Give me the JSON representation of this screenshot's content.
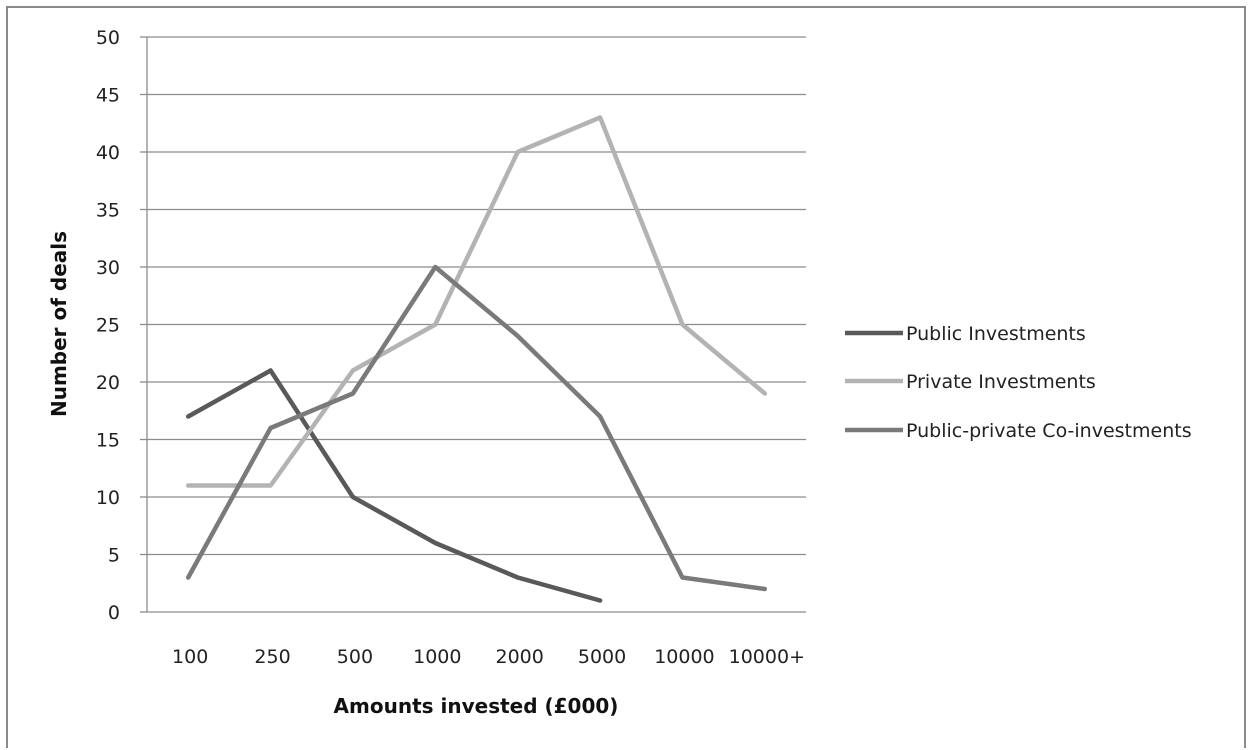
{
  "chart_data": {
    "type": "line",
    "title": "",
    "xlabel": "Amounts invested (£000)",
    "ylabel": "Number of deals",
    "categories": [
      "100",
      "250",
      "500",
      "1000",
      "2000",
      "5000",
      "10000",
      "10000+"
    ],
    "ylim": [
      0,
      50
    ],
    "yticks": [
      0,
      5,
      10,
      15,
      20,
      25,
      30,
      35,
      40,
      45,
      50
    ],
    "grid": true,
    "legend_position": "right",
    "series": [
      {
        "name": "Public Investments",
        "color": "#595959",
        "values": [
          17,
          21,
          10,
          6,
          3,
          1,
          null,
          null
        ]
      },
      {
        "name": "Private Investments",
        "color": "#b3b3b3",
        "values": [
          11,
          11,
          21,
          25,
          40,
          43,
          25,
          19
        ]
      },
      {
        "name": "Public-private Co-investments",
        "color": "#7a7a7a",
        "values": [
          3,
          16,
          19,
          30,
          24,
          17,
          3,
          2
        ]
      }
    ]
  }
}
